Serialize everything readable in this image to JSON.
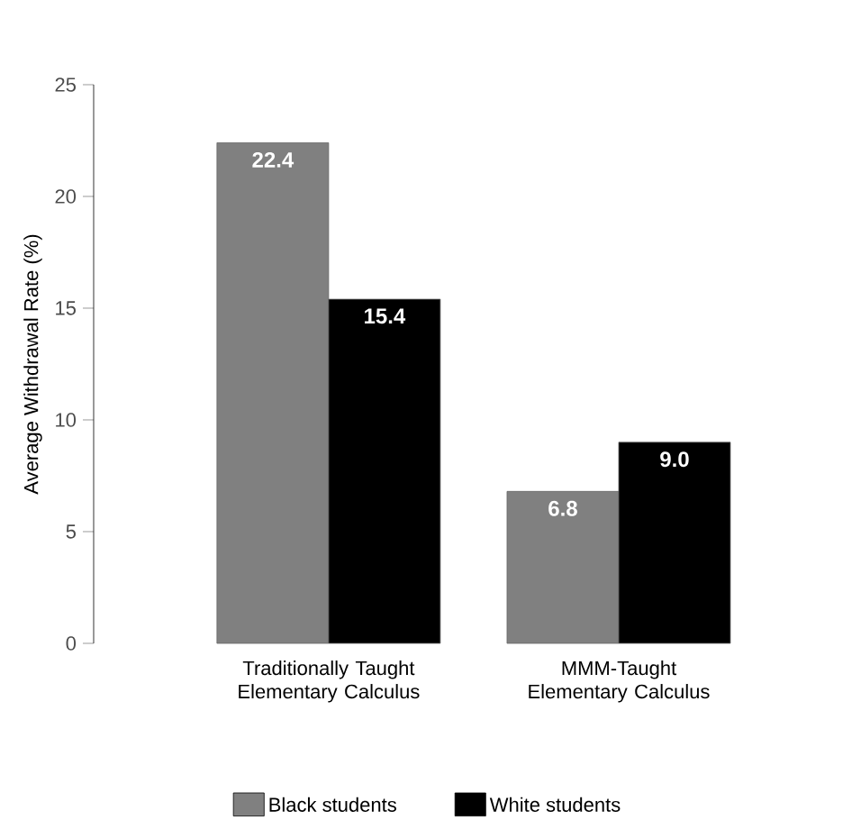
{
  "chart_data": {
    "type": "bar",
    "ylabel": "Average Withdrawal Rate (%)",
    "categories": [
      "Traditionally Taught Elementary Calculus",
      "MMM-Taught Elementary Calculus"
    ],
    "series": [
      {
        "name": "Black students",
        "color": "#808080",
        "values": [
          22.4,
          6.8
        ],
        "value_labels": [
          "22.4",
          "6.8"
        ]
      },
      {
        "name": "White students",
        "color": "#000000",
        "values": [
          15.4,
          9.0
        ],
        "value_labels": [
          "15.4",
          "9.0"
        ]
      }
    ],
    "ylim": [
      0,
      25
    ],
    "yticks": [
      0,
      5,
      10,
      15,
      20,
      25
    ],
    "grid": false,
    "legend": "bottom"
  }
}
